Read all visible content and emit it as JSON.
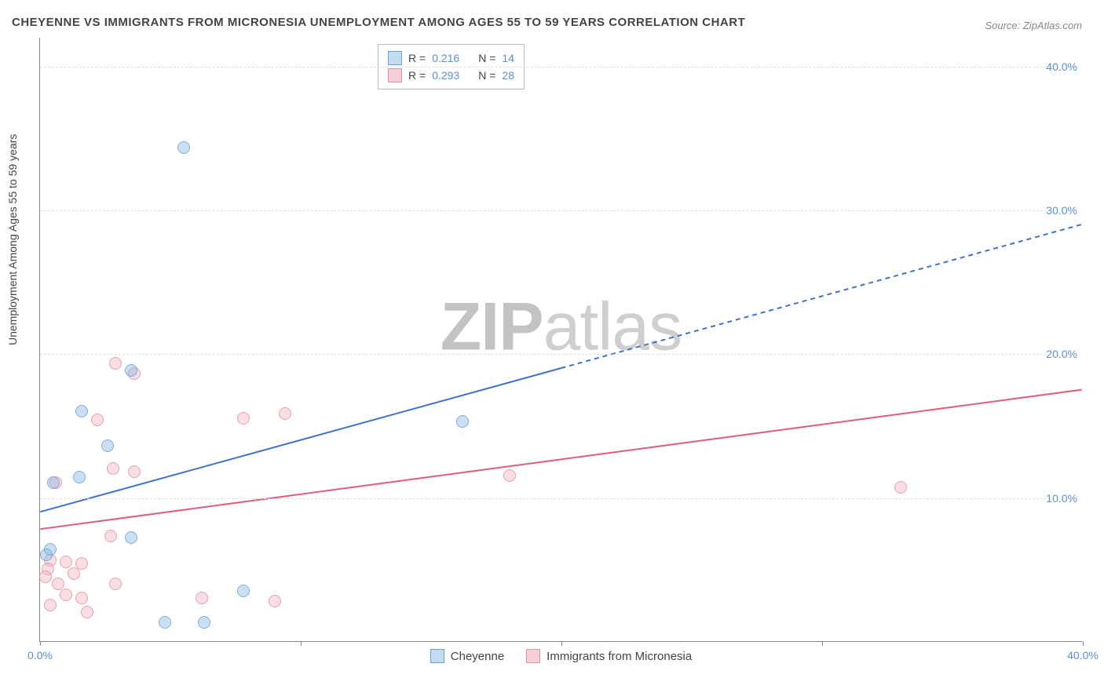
{
  "title": "CHEYENNE VS IMMIGRANTS FROM MICRONESIA UNEMPLOYMENT AMONG AGES 55 TO 59 YEARS CORRELATION CHART",
  "source": "Source: ZipAtlas.com",
  "y_axis_label": "Unemployment Among Ages 55 to 59 years",
  "watermark_a": "ZIP",
  "watermark_b": "atlas",
  "chart": {
    "type": "scatter",
    "xlim": [
      0,
      40
    ],
    "ylim": [
      0,
      42
    ],
    "y_ticks": [
      10,
      20,
      30,
      40
    ],
    "y_tick_labels": [
      "10.0%",
      "20.0%",
      "30.0%",
      "40.0%"
    ],
    "x_ticks": [
      0,
      10,
      20,
      30,
      40
    ],
    "x_tick_labels_visible": {
      "0": "0.0%",
      "40": "40.0%"
    },
    "background_color": "#ffffff",
    "grid_color": "#dddddd",
    "axis_color": "#888888",
    "marker_size": 16,
    "series": [
      {
        "name": "Cheyenne",
        "color_fill": "#c4dcf2",
        "color_stroke": "#6aa1d8",
        "marker_class": "marker-blue",
        "R": "0.216",
        "N": "14",
        "trend": {
          "x_solid_end": 20,
          "y_start": 9.0,
          "y_at_solid_end": 19.0,
          "y_end": 29.0,
          "stroke": "#3f73c9",
          "width": 2
        },
        "points": [
          {
            "x": 5.5,
            "y": 34.3
          },
          {
            "x": 3.5,
            "y": 18.8
          },
          {
            "x": 1.6,
            "y": 16.0
          },
          {
            "x": 16.2,
            "y": 15.3
          },
          {
            "x": 2.6,
            "y": 13.6
          },
          {
            "x": 1.5,
            "y": 11.4
          },
          {
            "x": 0.5,
            "y": 11.0
          },
          {
            "x": 3.5,
            "y": 7.2
          },
          {
            "x": 0.4,
            "y": 6.4
          },
          {
            "x": 0.25,
            "y": 6.0
          },
          {
            "x": 7.8,
            "y": 3.5
          },
          {
            "x": 4.8,
            "y": 1.3
          },
          {
            "x": 6.3,
            "y": 1.3
          }
        ]
      },
      {
        "name": "Immigrants from Micronesia",
        "color_fill": "#f6d0d8",
        "color_stroke": "#e190a5",
        "marker_class": "marker-pink",
        "R": "0.293",
        "N": "28",
        "trend": {
          "x_solid_end": 40,
          "y_start": 7.8,
          "y_at_solid_end": 17.5,
          "y_end": 17.5,
          "stroke": "#e05a7c",
          "width": 2
        },
        "points": [
          {
            "x": 2.9,
            "y": 19.3
          },
          {
            "x": 3.6,
            "y": 18.6
          },
          {
            "x": 2.2,
            "y": 15.4
          },
          {
            "x": 7.8,
            "y": 15.5
          },
          {
            "x": 9.4,
            "y": 15.8
          },
          {
            "x": 2.8,
            "y": 12.0
          },
          {
            "x": 3.6,
            "y": 11.8
          },
          {
            "x": 18.0,
            "y": 11.5
          },
          {
            "x": 0.6,
            "y": 11.0
          },
          {
            "x": 33.0,
            "y": 10.7
          },
          {
            "x": 2.7,
            "y": 7.3
          },
          {
            "x": 0.4,
            "y": 5.6
          },
          {
            "x": 1.0,
            "y": 5.5
          },
          {
            "x": 1.6,
            "y": 5.4
          },
          {
            "x": 0.3,
            "y": 5.0
          },
          {
            "x": 0.2,
            "y": 4.5
          },
          {
            "x": 1.3,
            "y": 4.7
          },
          {
            "x": 0.7,
            "y": 4.0
          },
          {
            "x": 2.9,
            "y": 4.0
          },
          {
            "x": 1.0,
            "y": 3.2
          },
          {
            "x": 1.6,
            "y": 3.0
          },
          {
            "x": 6.2,
            "y": 3.0
          },
          {
            "x": 9.0,
            "y": 2.8
          },
          {
            "x": 0.4,
            "y": 2.5
          },
          {
            "x": 1.8,
            "y": 2.0
          }
        ]
      }
    ],
    "legend_top": {
      "rows": [
        {
          "swatch": "swatch-blue",
          "r_label": "R  =",
          "r_value": "0.216",
          "n_label": "N  =",
          "n_value": "14"
        },
        {
          "swatch": "swatch-pink",
          "r_label": "R  =",
          "r_value": "0.293",
          "n_label": "N  =",
          "n_value": "28"
        }
      ]
    },
    "legend_bottom": [
      {
        "swatch": "swatch-blue",
        "label": "Cheyenne"
      },
      {
        "swatch": "swatch-pink",
        "label": "Immigrants from Micronesia"
      }
    ]
  }
}
